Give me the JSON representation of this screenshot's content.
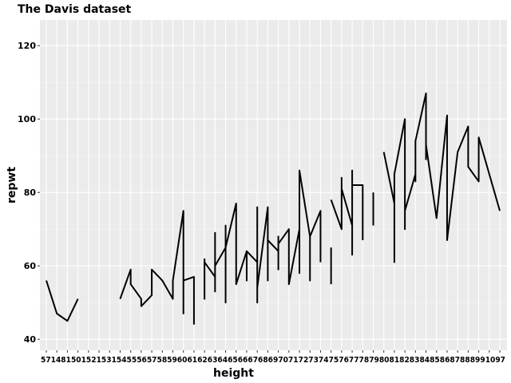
{
  "chart_data": {
    "type": "line",
    "title": "The Davis dataset",
    "xlabel": "height",
    "ylabel": "repwt",
    "x_scale": "discrete",
    "ylim": [
      37,
      127
    ],
    "y_ticks": [
      40,
      60,
      80,
      100,
      120
    ],
    "grid": true,
    "x_categories": [
      "57",
      "148",
      "150",
      "152",
      "153",
      "154",
      "155",
      "156",
      "157",
      "158",
      "159",
      "160",
      "161",
      "162",
      "163",
      "164",
      "165",
      "166",
      "167",
      "168",
      "169",
      "170",
      "171",
      "172",
      "173",
      "174",
      "175",
      "176",
      "177",
      "178",
      "179",
      "180",
      "181",
      "182",
      "183",
      "184",
      "185",
      "186",
      "187",
      "188",
      "189",
      "190",
      "191",
      "197"
    ],
    "x_tick_labels": "57148150152153154555657585960616263646566676869707172737475767778798081828384858687888991097",
    "segments": [
      [
        [
          "57",
          56
        ],
        [
          "148",
          47
        ],
        [
          "150",
          45
        ],
        [
          "152",
          51
        ]
      ],
      [
        [
          "156",
          51
        ],
        [
          "157",
          59
        ],
        [
          "157",
          55
        ],
        [
          "158",
          51
        ],
        [
          "158",
          49
        ],
        [
          "159",
          52
        ],
        [
          "159",
          59
        ],
        [
          "160",
          56
        ],
        [
          "161",
          51
        ],
        [
          "161",
          56
        ],
        [
          "162",
          75
        ],
        [
          "162",
          47
        ],
        [
          "162",
          56
        ],
        [
          "163",
          57
        ],
        [
          "163",
          44
        ]
      ],
      [
        [
          "164",
          62
        ],
        [
          "164",
          51
        ],
        [
          "164",
          61
        ],
        [
          "165",
          57
        ],
        [
          "165",
          69
        ],
        [
          "165",
          53
        ],
        [
          "165",
          60
        ],
        [
          "166",
          65
        ],
        [
          "166",
          71
        ],
        [
          "166",
          50
        ],
        [
          "166",
          65
        ],
        [
          "167",
          77
        ],
        [
          "167",
          55
        ],
        [
          "168",
          64
        ],
        [
          "168",
          56
        ],
        [
          "168",
          64
        ],
        [
          "169",
          61
        ],
        [
          "169",
          76
        ],
        [
          "169",
          50
        ],
        [
          "169",
          54
        ],
        [
          "170",
          76
        ],
        [
          "170",
          56
        ],
        [
          "170",
          67
        ],
        [
          "171",
          64
        ],
        [
          "171",
          59
        ],
        [
          "171",
          68
        ],
        [
          "171",
          66
        ],
        [
          "172",
          70
        ],
        [
          "172",
          55
        ],
        [
          "173",
          70
        ],
        [
          "173",
          58
        ],
        [
          "173",
          86
        ],
        [
          "174",
          68
        ],
        [
          "174",
          56
        ],
        [
          "174",
          68
        ],
        [
          "175",
          75
        ],
        [
          "175",
          61
        ]
      ],
      [
        [
          "176",
          65
        ],
        [
          "176",
          55
        ]
      ],
      [
        [
          "176",
          78
        ],
        [
          "177",
          70
        ],
        [
          "177",
          84
        ],
        [
          "177",
          81
        ],
        [
          "178",
          71
        ],
        [
          "178",
          86
        ],
        [
          "178",
          63
        ],
        [
          "178",
          82
        ],
        [
          "179",
          82
        ],
        [
          "179",
          67
        ]
      ],
      [
        [
          "180",
          80
        ],
        [
          "180",
          71
        ]
      ],
      [
        [
          "181",
          91
        ],
        [
          "182",
          77
        ],
        [
          "182",
          61
        ],
        [
          "182",
          85
        ],
        [
          "183",
          100
        ],
        [
          "183",
          70
        ],
        [
          "183",
          75
        ],
        [
          "184",
          85
        ],
        [
          "184",
          83
        ],
        [
          "184",
          94
        ],
        [
          "185",
          107
        ],
        [
          "185",
          89
        ],
        [
          "185",
          93
        ],
        [
          "186",
          73
        ],
        [
          "187",
          101
        ],
        [
          "187",
          67
        ],
        [
          "188",
          91
        ],
        [
          "189",
          98
        ],
        [
          "189",
          87
        ],
        [
          "190",
          83
        ],
        [
          "190",
          95
        ],
        [
          "197",
          75
        ]
      ]
    ]
  }
}
